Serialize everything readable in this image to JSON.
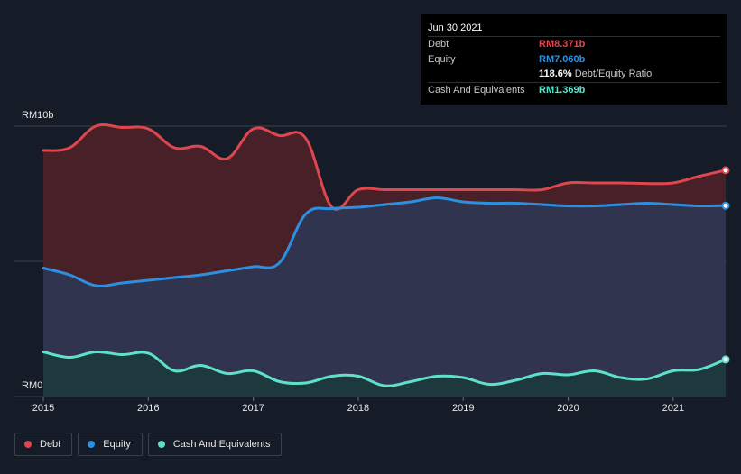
{
  "tooltip": {
    "date": "Jun 30 2021",
    "rows": [
      {
        "label": "Debt",
        "value": "RM8.371b"
      },
      {
        "label": "Equity",
        "value": "RM7.060b"
      },
      {
        "ratio_value": "118.6%",
        "ratio_label": "Debt/Equity Ratio"
      },
      {
        "label": "Cash And Equivalents",
        "value": "RM1.369b"
      }
    ]
  },
  "colors": {
    "debt": "#e0464e",
    "equity": "#2d8fe0",
    "cash": "#5fe0c8",
    "background": "#151b27"
  },
  "legend": [
    {
      "label": "Debt",
      "color": "#e0464e"
    },
    {
      "label": "Equity",
      "color": "#2d8fe0"
    },
    {
      "label": "Cash And Equivalents",
      "color": "#5fe0c8"
    }
  ],
  "chart_data": {
    "type": "area",
    "y_tick_labels": [
      "RM10b",
      "RM0"
    ],
    "ylim": [
      0,
      10
    ],
    "xlim": [
      2015.0,
      2021.5
    ],
    "x_tick_labels": [
      "2015",
      "2016",
      "2017",
      "2018",
      "2019",
      "2020",
      "2021"
    ],
    "x_ticks": [
      2015,
      2016,
      2017,
      2018,
      2019,
      2020,
      2021
    ],
    "grid": true,
    "legend_position": "bottom-left",
    "series": [
      {
        "name": "Debt",
        "x": [
          2015.0,
          2015.25,
          2015.5,
          2015.75,
          2016.0,
          2016.25,
          2016.5,
          2016.75,
          2017.0,
          2017.25,
          2017.5,
          2017.75,
          2018.0,
          2018.25,
          2018.5,
          2018.75,
          2019.0,
          2019.25,
          2019.5,
          2019.75,
          2020.0,
          2020.25,
          2020.5,
          2020.75,
          2021.0,
          2021.25,
          2021.5
        ],
        "values": [
          9.1,
          9.2,
          10.0,
          9.95,
          9.9,
          9.2,
          9.25,
          8.8,
          9.9,
          9.65,
          9.55,
          7.0,
          7.65,
          7.65,
          7.65,
          7.65,
          7.65,
          7.65,
          7.65,
          7.65,
          7.9,
          7.9,
          7.9,
          7.88,
          7.9,
          8.15,
          8.371
        ]
      },
      {
        "name": "Equity",
        "x": [
          2015.0,
          2015.25,
          2015.5,
          2015.75,
          2016.0,
          2016.25,
          2016.5,
          2016.75,
          2017.0,
          2017.25,
          2017.5,
          2017.75,
          2018.0,
          2018.25,
          2018.5,
          2018.75,
          2019.0,
          2019.25,
          2019.5,
          2019.75,
          2020.0,
          2020.25,
          2020.5,
          2020.75,
          2021.0,
          2021.25,
          2021.5
        ],
        "values": [
          4.75,
          4.5,
          4.1,
          4.2,
          4.3,
          4.4,
          4.5,
          4.65,
          4.8,
          4.95,
          6.75,
          6.95,
          7.0,
          7.1,
          7.2,
          7.35,
          7.2,
          7.15,
          7.15,
          7.1,
          7.05,
          7.05,
          7.1,
          7.15,
          7.1,
          7.05,
          7.06
        ]
      },
      {
        "name": "Cash And Equivalents",
        "x": [
          2015.0,
          2015.25,
          2015.5,
          2015.75,
          2016.0,
          2016.25,
          2016.5,
          2016.75,
          2017.0,
          2017.25,
          2017.5,
          2017.75,
          2018.0,
          2018.25,
          2018.5,
          2018.75,
          2019.0,
          2019.25,
          2019.5,
          2019.75,
          2020.0,
          2020.25,
          2020.5,
          2020.75,
          2021.0,
          2021.25,
          2021.5
        ],
        "values": [
          1.65,
          1.45,
          1.65,
          1.55,
          1.6,
          0.95,
          1.15,
          0.85,
          0.95,
          0.55,
          0.5,
          0.75,
          0.75,
          0.4,
          0.55,
          0.75,
          0.7,
          0.45,
          0.6,
          0.85,
          0.8,
          0.95,
          0.7,
          0.65,
          0.95,
          1.0,
          1.369
        ]
      }
    ]
  }
}
